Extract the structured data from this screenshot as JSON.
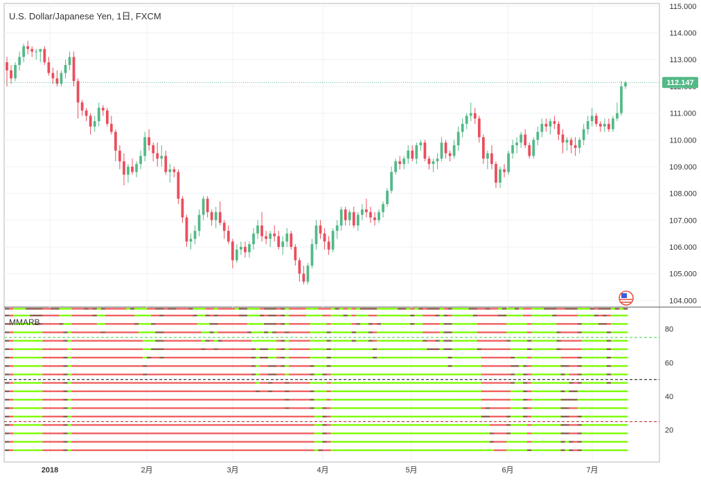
{
  "chart_data": {
    "type": "candlestick",
    "title": "U.S. Dollar/Japanese Yen, 1日, FXCM",
    "last_price": 112.147,
    "last_price_label": "112.147",
    "price_axis": {
      "ylim": [
        103.75,
        115.1
      ],
      "ticks": [
        "115.000",
        "114.000",
        "113.000",
        "112.000",
        "111.000",
        "110.000",
        "109.000",
        "108.000",
        "107.000",
        "106.000",
        "105.000",
        "104.000"
      ]
    },
    "date_axis": {
      "labels": [
        {
          "text": "2018",
          "bold": true
        },
        {
          "text": "2月",
          "bold": false
        },
        {
          "text": "3月",
          "bold": false
        },
        {
          "text": "4月",
          "bold": false
        },
        {
          "text": "5月",
          "bold": false
        },
        {
          "text": "6月",
          "bold": false
        },
        {
          "text": "7月",
          "bold": false
        }
      ]
    },
    "up_color": "#53b987",
    "down_color": "#eb4d5c",
    "candles_ohlc": [
      [
        112.9,
        113.1,
        112.0,
        112.6
      ],
      [
        112.6,
        112.8,
        112.1,
        112.3
      ],
      [
        112.3,
        112.9,
        112.2,
        112.8
      ],
      [
        112.8,
        113.3,
        112.6,
        113.1
      ],
      [
        113.1,
        113.6,
        112.9,
        113.5
      ],
      [
        113.5,
        113.7,
        113.2,
        113.4
      ],
      [
        113.4,
        113.5,
        113.1,
        113.3
      ],
      [
        113.3,
        113.4,
        113.0,
        113.3
      ],
      [
        113.3,
        113.4,
        112.9,
        113.4
      ],
      [
        113.4,
        113.5,
        112.8,
        112.9
      ],
      [
        112.9,
        113.1,
        112.4,
        112.5
      ],
      [
        112.5,
        112.7,
        112.1,
        112.3
      ],
      [
        112.3,
        112.6,
        112.0,
        112.1
      ],
      [
        112.1,
        112.6,
        112.0,
        112.5
      ],
      [
        112.5,
        113.0,
        112.3,
        112.8
      ],
      [
        112.8,
        113.3,
        112.6,
        113.1
      ],
      [
        113.1,
        113.3,
        112.0,
        112.2
      ],
      [
        112.2,
        112.3,
        110.8,
        111.4
      ],
      [
        111.4,
        111.5,
        110.9,
        111.1
      ],
      [
        111.1,
        111.2,
        110.7,
        110.9
      ],
      [
        110.9,
        111.0,
        110.2,
        110.5
      ],
      [
        110.5,
        110.9,
        110.3,
        110.7
      ],
      [
        110.7,
        111.4,
        110.5,
        111.2
      ],
      [
        111.2,
        111.3,
        110.9,
        111.1
      ],
      [
        111.1,
        111.2,
        110.5,
        110.6
      ],
      [
        110.6,
        110.9,
        110.2,
        110.3
      ],
      [
        110.3,
        110.4,
        109.2,
        109.6
      ],
      [
        109.6,
        109.8,
        108.9,
        109.2
      ],
      [
        109.2,
        109.5,
        108.3,
        108.7
      ],
      [
        108.7,
        109.1,
        108.4,
        109.0
      ],
      [
        109.0,
        109.3,
        108.7,
        108.8
      ],
      [
        108.8,
        109.2,
        108.6,
        109.1
      ],
      [
        109.1,
        109.6,
        108.9,
        109.4
      ],
      [
        109.4,
        110.3,
        109.2,
        110.1
      ],
      [
        110.1,
        110.4,
        109.6,
        109.8
      ],
      [
        109.8,
        109.9,
        109.2,
        109.5
      ],
      [
        109.5,
        109.9,
        109.0,
        109.3
      ],
      [
        109.3,
        109.8,
        109.0,
        109.4
      ],
      [
        109.4,
        109.6,
        108.7,
        108.8
      ],
      [
        108.8,
        109.1,
        108.4,
        108.9
      ],
      [
        108.9,
        109.0,
        108.6,
        108.8
      ],
      [
        108.8,
        108.9,
        107.6,
        107.8
      ],
      [
        107.8,
        107.9,
        106.9,
        107.1
      ],
      [
        107.1,
        107.2,
        106.0,
        106.2
      ],
      [
        106.2,
        106.5,
        105.9,
        106.3
      ],
      [
        106.3,
        106.8,
        106.1,
        106.6
      ],
      [
        106.6,
        107.4,
        106.4,
        107.2
      ],
      [
        107.2,
        107.9,
        107.0,
        107.8
      ],
      [
        107.8,
        107.9,
        107.1,
        107.3
      ],
      [
        107.3,
        107.4,
        106.8,
        107.0
      ],
      [
        107.0,
        107.5,
        106.7,
        107.3
      ],
      [
        107.3,
        107.7,
        106.8,
        106.9
      ],
      [
        106.9,
        107.0,
        106.3,
        106.6
      ],
      [
        106.6,
        106.8,
        106.1,
        106.2
      ],
      [
        106.2,
        106.3,
        105.2,
        105.5
      ],
      [
        105.5,
        106.1,
        105.4,
        105.9
      ],
      [
        105.9,
        106.2,
        105.7,
        106.0
      ],
      [
        106.0,
        106.2,
        105.6,
        105.8
      ],
      [
        105.8,
        106.2,
        105.6,
        106.1
      ],
      [
        106.1,
        106.7,
        105.9,
        106.5
      ],
      [
        106.5,
        107.0,
        106.3,
        106.8
      ],
      [
        106.8,
        107.3,
        106.2,
        106.4
      ],
      [
        106.4,
        106.6,
        106.1,
        106.3
      ],
      [
        106.3,
        106.6,
        106.0,
        106.5
      ],
      [
        106.5,
        106.8,
        106.2,
        106.4
      ],
      [
        106.4,
        106.6,
        105.9,
        106.0
      ],
      [
        106.0,
        106.4,
        105.7,
        106.2
      ],
      [
        106.2,
        106.7,
        106.0,
        106.5
      ],
      [
        106.5,
        106.6,
        105.9,
        106.0
      ],
      [
        106.0,
        106.1,
        105.3,
        105.5
      ],
      [
        105.5,
        105.6,
        104.7,
        105.0
      ],
      [
        105.0,
        105.3,
        104.6,
        104.7
      ],
      [
        104.7,
        105.4,
        104.6,
        105.3
      ],
      [
        105.3,
        106.3,
        105.2,
        106.1
      ],
      [
        106.1,
        107.0,
        105.9,
        106.8
      ],
      [
        106.8,
        107.0,
        106.3,
        106.5
      ],
      [
        106.5,
        106.7,
        105.9,
        106.2
      ],
      [
        106.2,
        106.4,
        105.7,
        105.9
      ],
      [
        105.9,
        106.7,
        105.8,
        106.6
      ],
      [
        106.6,
        107.0,
        106.3,
        106.8
      ],
      [
        106.8,
        107.5,
        106.6,
        107.4
      ],
      [
        107.4,
        107.5,
        106.8,
        107.0
      ],
      [
        107.0,
        107.4,
        106.8,
        107.3
      ],
      [
        107.3,
        107.5,
        106.7,
        106.8
      ],
      [
        106.8,
        107.3,
        106.6,
        107.2
      ],
      [
        107.2,
        107.6,
        107.0,
        107.4
      ],
      [
        107.4,
        107.8,
        107.1,
        107.3
      ],
      [
        107.3,
        107.5,
        106.9,
        107.1
      ],
      [
        107.1,
        107.3,
        106.8,
        107.0
      ],
      [
        107.0,
        107.4,
        106.9,
        107.3
      ],
      [
        107.3,
        107.7,
        107.1,
        107.6
      ],
      [
        107.6,
        108.2,
        107.5,
        108.1
      ],
      [
        108.1,
        109.0,
        108.0,
        108.8
      ],
      [
        108.8,
        109.3,
        108.7,
        109.2
      ],
      [
        109.2,
        109.4,
        108.9,
        109.1
      ],
      [
        109.1,
        109.4,
        108.9,
        109.3
      ],
      [
        109.3,
        109.8,
        109.1,
        109.6
      ],
      [
        109.6,
        109.8,
        109.2,
        109.3
      ],
      [
        109.3,
        109.9,
        109.1,
        109.8
      ],
      [
        109.8,
        110.0,
        109.6,
        109.9
      ],
      [
        109.9,
        110.0,
        109.2,
        109.3
      ],
      [
        109.3,
        109.4,
        108.9,
        109.1
      ],
      [
        109.1,
        109.3,
        108.8,
        109.2
      ],
      [
        109.2,
        109.5,
        108.9,
        109.3
      ],
      [
        109.3,
        110.1,
        109.2,
        109.9
      ],
      [
        109.9,
        110.0,
        109.3,
        109.5
      ],
      [
        109.5,
        109.6,
        109.2,
        109.4
      ],
      [
        109.4,
        110.0,
        109.3,
        109.8
      ],
      [
        109.8,
        110.5,
        109.6,
        110.3
      ],
      [
        110.3,
        110.8,
        110.1,
        110.6
      ],
      [
        110.6,
        111.0,
        110.4,
        110.9
      ],
      [
        110.9,
        111.4,
        110.7,
        111.0
      ],
      [
        111.0,
        111.2,
        110.6,
        110.8
      ],
      [
        110.8,
        110.9,
        109.9,
        110.1
      ],
      [
        110.1,
        110.2,
        109.1,
        109.3
      ],
      [
        109.3,
        109.6,
        108.9,
        109.5
      ],
      [
        109.5,
        109.8,
        108.9,
        109.1
      ],
      [
        109.1,
        109.2,
        108.2,
        108.4
      ],
      [
        108.4,
        109.0,
        108.2,
        108.9
      ],
      [
        108.9,
        109.1,
        108.6,
        108.8
      ],
      [
        108.8,
        109.6,
        108.7,
        109.5
      ],
      [
        109.5,
        110.0,
        109.3,
        109.8
      ],
      [
        109.8,
        110.1,
        109.5,
        109.9
      ],
      [
        109.9,
        110.3,
        109.7,
        110.2
      ],
      [
        110.2,
        110.4,
        109.7,
        109.8
      ],
      [
        109.8,
        109.9,
        109.3,
        109.4
      ],
      [
        109.4,
        110.1,
        109.3,
        110.0
      ],
      [
        110.0,
        110.5,
        109.8,
        110.3
      ],
      [
        110.3,
        110.8,
        110.1,
        110.6
      ],
      [
        110.6,
        110.8,
        110.3,
        110.5
      ],
      [
        110.5,
        110.8,
        110.2,
        110.7
      ],
      [
        110.7,
        110.9,
        110.4,
        110.6
      ],
      [
        110.6,
        110.7,
        110.0,
        110.2
      ],
      [
        110.2,
        110.4,
        109.5,
        109.9
      ],
      [
        109.9,
        110.1,
        109.6,
        110.0
      ],
      [
        110.0,
        110.1,
        109.5,
        109.8
      ],
      [
        109.8,
        110.1,
        109.4,
        109.7
      ],
      [
        109.7,
        110.1,
        109.5,
        110.0
      ],
      [
        110.0,
        110.6,
        109.8,
        110.4
      ],
      [
        110.4,
        110.9,
        110.2,
        110.7
      ],
      [
        110.7,
        111.2,
        110.5,
        110.9
      ],
      [
        110.9,
        111.0,
        110.5,
        110.6
      ],
      [
        110.6,
        110.7,
        110.3,
        110.5
      ],
      [
        110.5,
        110.8,
        110.3,
        110.6
      ],
      [
        110.6,
        110.8,
        110.3,
        110.4
      ],
      [
        110.4,
        110.9,
        110.3,
        110.8
      ],
      [
        110.8,
        111.4,
        110.7,
        111.0
      ],
      [
        111.0,
        112.2,
        110.9,
        112.0
      ],
      [
        112.0,
        112.2,
        111.9,
        112.147
      ]
    ],
    "indicator": {
      "title": "MMARB",
      "yticks": [
        "80",
        "60",
        "40",
        "20"
      ],
      "ylim": [
        1,
        93
      ],
      "ref_lines": [
        {
          "value": 75,
          "color": "#3fcf3f"
        },
        {
          "value": 50,
          "color": "#000000"
        },
        {
          "value": 25,
          "color": "#b22222"
        }
      ],
      "ribbon_count": 18,
      "ribbon_values": [
        92,
        88,
        83,
        78,
        73,
        68,
        63,
        58,
        53,
        48,
        43,
        38,
        33,
        28,
        23,
        18,
        13,
        8
      ],
      "green_color": "#7cfc00",
      "red_color": "#f06060",
      "mix_color": "#8b5a4a"
    }
  }
}
